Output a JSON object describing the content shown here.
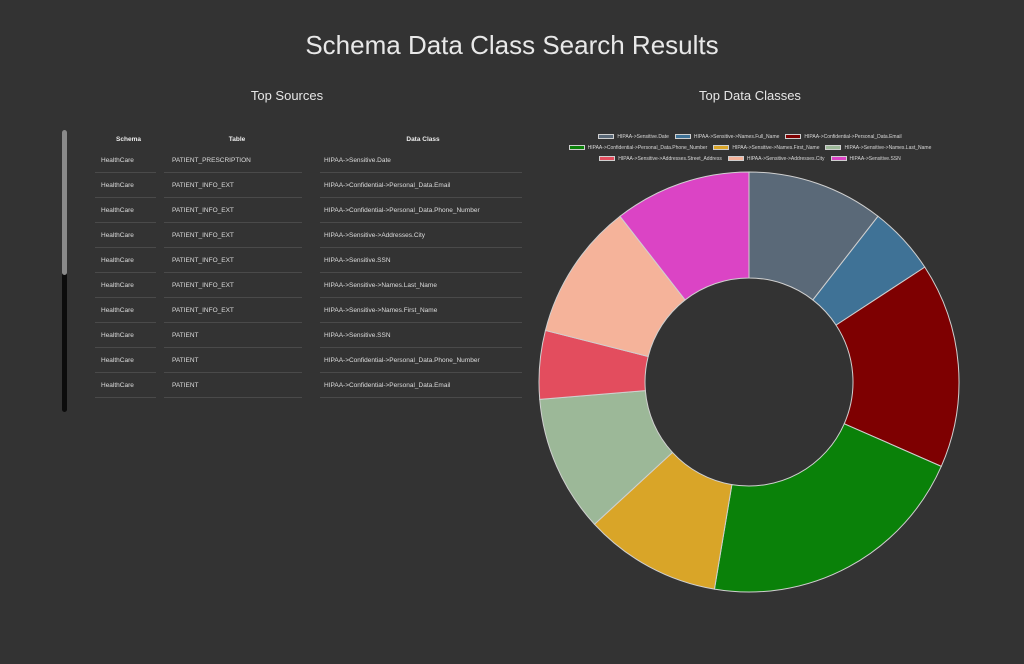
{
  "page": {
    "title": "Schema Data Class Search Results"
  },
  "sources": {
    "title": "Top Sources",
    "headers": [
      "Schema",
      "Table",
      "Data Class"
    ],
    "rows": [
      [
        "HealthCare",
        "PATIENT_PRESCRIPTION",
        "HIPAA->Sensitive.Date"
      ],
      [
        "HealthCare",
        "PATIENT_INFO_EXT",
        "HIPAA->Confidential->Personal_Data.Email"
      ],
      [
        "HealthCare",
        "PATIENT_INFO_EXT",
        "HIPAA->Confidential->Personal_Data.Phone_Number"
      ],
      [
        "HealthCare",
        "PATIENT_INFO_EXT",
        "HIPAA->Sensitive->Addresses.City"
      ],
      [
        "HealthCare",
        "PATIENT_INFO_EXT",
        "HIPAA->Sensitive.SSN"
      ],
      [
        "HealthCare",
        "PATIENT_INFO_EXT",
        "HIPAA->Sensitive->Names.Last_Name"
      ],
      [
        "HealthCare",
        "PATIENT_INFO_EXT",
        "HIPAA->Sensitive->Names.First_Name"
      ],
      [
        "HealthCare",
        "PATIENT",
        "HIPAA->Sensitive.SSN"
      ],
      [
        "HealthCare",
        "PATIENT",
        "HIPAA->Confidential->Personal_Data.Phone_Number"
      ],
      [
        "HealthCare",
        "PATIENT",
        "HIPAA->Confidential->Personal_Data.Email"
      ]
    ]
  },
  "chart_data": {
    "type": "pie",
    "title": "Top Data Classes",
    "legend_position": "top",
    "categories": [
      "HIPAA->Sensitive.Date",
      "HIPAA->Sensitive->Names.Full_Name",
      "HIPAA->Confidential->Personal_Data.Email",
      "HIPAA->Confidential->Personal_Data.Phone_Number",
      "HIPAA->Sensitive->Names.First_Name",
      "HIPAA->Sensitive->Names.Last_Name",
      "HIPAA->Sensitive->Addresses.Street_Address",
      "HIPAA->Sensitive->Addresses.City",
      "HIPAA->Sensitive.SSN"
    ],
    "values": [
      2,
      1,
      3,
      4,
      2,
      2,
      1,
      2,
      2
    ],
    "colors": [
      "#5a6978",
      "#3f7296",
      "#7e0001",
      "#0a8109",
      "#d9a528",
      "#9cb898",
      "#e34d5e",
      "#f5b39a",
      "#db44c5"
    ],
    "donut": true
  }
}
